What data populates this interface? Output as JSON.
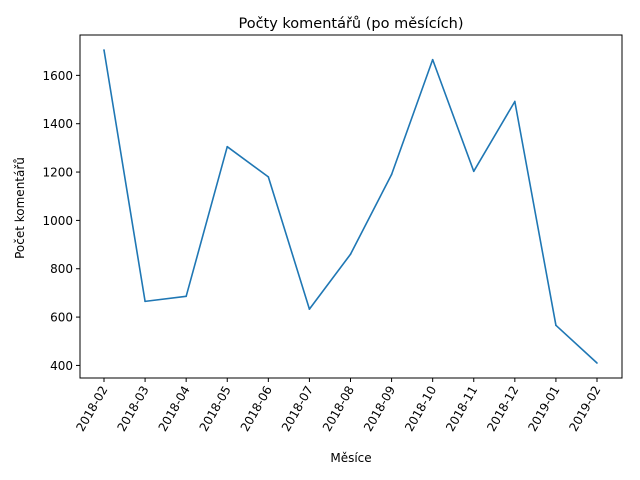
{
  "chart_data": {
    "type": "line",
    "title": "Počty komentářů (po měsících)",
    "xlabel": "Měsíce",
    "ylabel": "Počet komentářů",
    "categories": [
      "2018-02",
      "2018-03",
      "2018-04",
      "2018-05",
      "2018-06",
      "2018-07",
      "2018-08",
      "2018-09",
      "2018-10",
      "2018-11",
      "2018-12",
      "2019-01",
      "2019-02"
    ],
    "series": [
      {
        "values": [
          1705,
          665,
          686,
          1305,
          1180,
          633,
          860,
          1190,
          1665,
          1203,
          1492,
          566,
          410
        ],
        "color": "#1f77b4"
      }
    ],
    "yticks": [
      400,
      600,
      800,
      1000,
      1200,
      1400,
      1600
    ],
    "ylim": [
      348,
      1767
    ],
    "grid": false,
    "legend": "none"
  }
}
